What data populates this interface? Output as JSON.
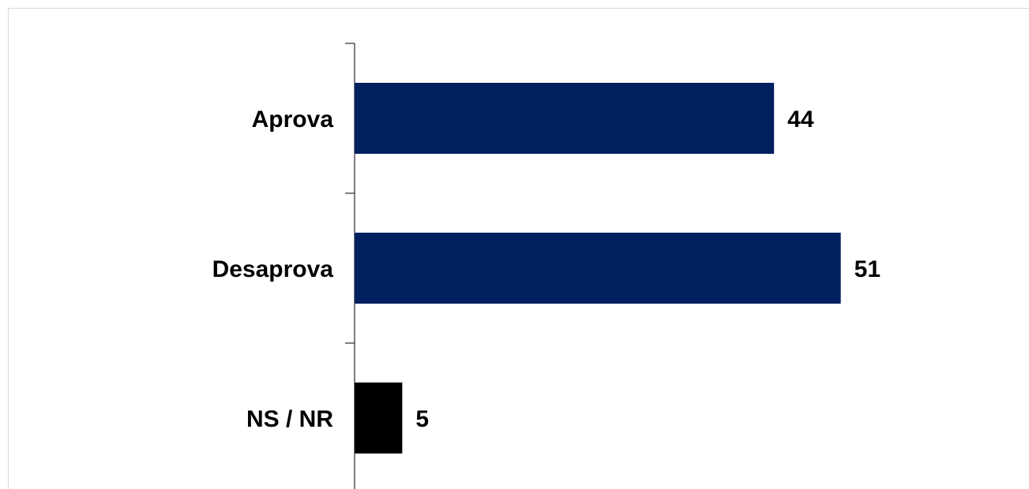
{
  "chart_data": {
    "type": "bar",
    "orientation": "horizontal",
    "categories": [
      "Aprova",
      "Desaprova",
      "NS / NR"
    ],
    "values": [
      44,
      51,
      5
    ],
    "colors": [
      "#002060",
      "#002060",
      "#000000"
    ],
    "xlim": [
      0,
      70
    ]
  }
}
